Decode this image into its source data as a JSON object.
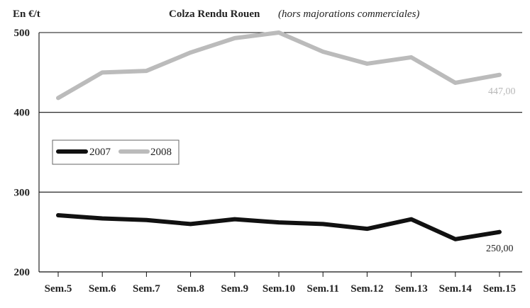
{
  "chart_data": {
    "type": "line",
    "title": "Colza Rendu Rouen",
    "subtitle": "(hors majorations commerciales)",
    "ylabel": "En €/t",
    "xlabel": "",
    "categories": [
      "Sem.5",
      "Sem.6",
      "Sem.7",
      "Sem.8",
      "Sem.9",
      "Sem.10",
      "Sem.11",
      "Sem.12",
      "Sem.13",
      "Sem.14",
      "Sem.15"
    ],
    "ylim": [
      200,
      500
    ],
    "yticks": [
      200,
      300,
      400,
      500
    ],
    "grid": true,
    "legend_position": "left",
    "series": [
      {
        "name": "2007",
        "color": "#111111",
        "values": [
          271,
          267,
          265,
          260,
          266,
          262,
          260,
          254,
          266,
          241,
          250
        ],
        "end_label": "250,00"
      },
      {
        "name": "2008",
        "color": "#bbbbbb",
        "values": [
          418,
          450,
          452,
          475,
          493,
          500,
          476,
          461,
          469,
          437,
          447
        ],
        "end_label": "447,00"
      }
    ]
  }
}
